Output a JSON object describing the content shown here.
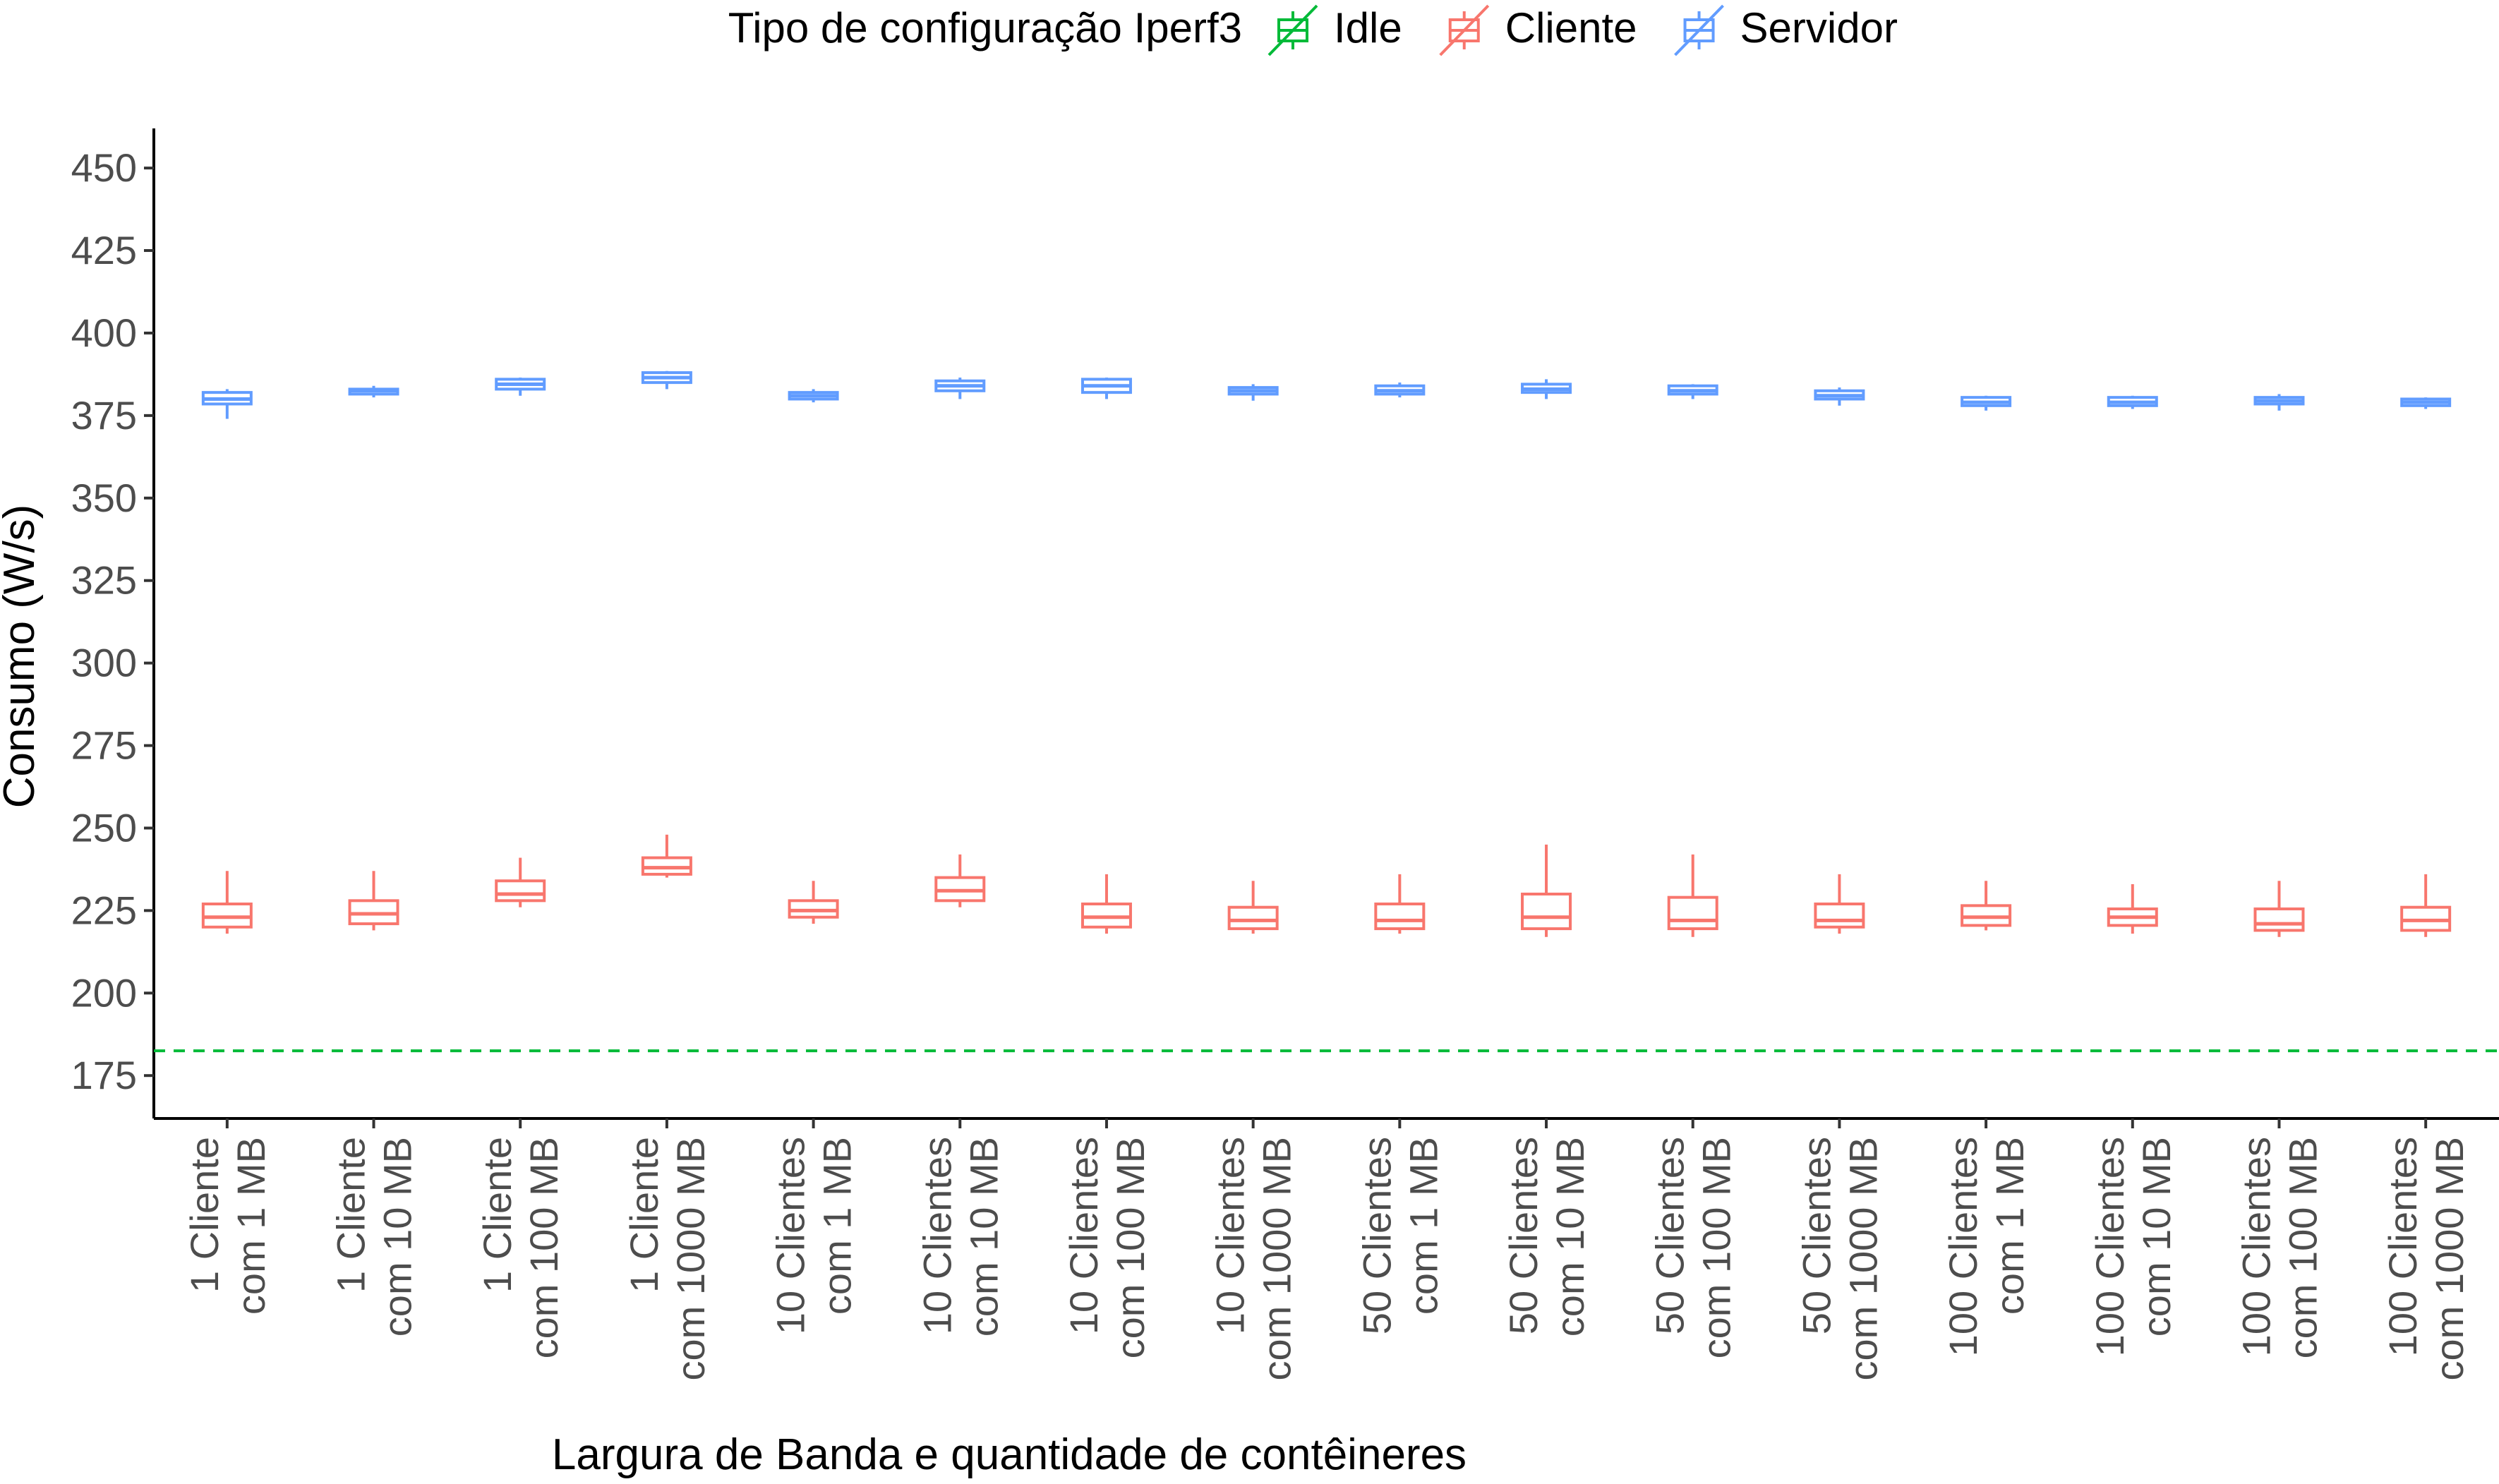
{
  "chart_data": {
    "type": "boxplot",
    "title": "",
    "xlabel": "Largura de Banda e quantidade de contêineres",
    "ylabel": "Consumo (W/s)",
    "ylim": [
      162,
      462
    ],
    "yticks": [
      175,
      200,
      225,
      250,
      275,
      300,
      325,
      350,
      375,
      400,
      425,
      450
    ],
    "grid": false,
    "legend": {
      "title": "Tipo de configuração Iperf3",
      "position": "top",
      "entries": [
        {
          "name": "Idle",
          "color": "#00BA38"
        },
        {
          "name": "Cliente",
          "color": "#F8766D"
        },
        {
          "name": "Servidor",
          "color": "#619CFF"
        }
      ]
    },
    "categories": [
      [
        "1 Cliente",
        "com 1 MB"
      ],
      [
        "1 Cliente",
        "com 10 MB"
      ],
      [
        "1 Cliente",
        "com 100 MB"
      ],
      [
        "1 Cliente",
        "com 1000 MB"
      ],
      [
        "10 Clientes",
        "com 1 MB"
      ],
      [
        "10 Clientes",
        "com 10 MB"
      ],
      [
        "10 Clientes",
        "com 100 MB"
      ],
      [
        "10 Clientes",
        "com 1000 MB"
      ],
      [
        "50 Clientes",
        "com 1 MB"
      ],
      [
        "50 Clientes",
        "com 10 MB"
      ],
      [
        "50 Clientes",
        "com 100 MB"
      ],
      [
        "50 Clientes",
        "com 1000 MB"
      ],
      [
        "100 Clientes",
        "com 1 MB"
      ],
      [
        "100 Clientes",
        "com 10 MB"
      ],
      [
        "100 Clientes",
        "com 100 MB"
      ],
      [
        "100 Clientes",
        "com 1000 MB"
      ]
    ],
    "series": [
      {
        "name": "Idle",
        "color": "#00BA38",
        "style": "dashed-hline",
        "value": 182.5
      },
      {
        "name": "Cliente",
        "color": "#F8766D",
        "boxes": [
          {
            "min": 218,
            "q1": 220,
            "median": 223,
            "q3": 227,
            "max": 237
          },
          {
            "min": 219,
            "q1": 221,
            "median": 224,
            "q3": 228,
            "max": 237
          },
          {
            "min": 226,
            "q1": 228,
            "median": 230,
            "q3": 234,
            "max": 241
          },
          {
            "min": 235,
            "q1": 236,
            "median": 238,
            "q3": 241,
            "max": 248
          },
          {
            "min": 221,
            "q1": 223,
            "median": 225,
            "q3": 228,
            "max": 234
          },
          {
            "min": 226,
            "q1": 228,
            "median": 231,
            "q3": 235,
            "max": 242
          },
          {
            "min": 218,
            "q1": 220,
            "median": 223,
            "q3": 227,
            "max": 236
          },
          {
            "min": 218,
            "q1": 219.5,
            "median": 222,
            "q3": 226,
            "max": 234
          },
          {
            "min": 218,
            "q1": 219.5,
            "median": 222,
            "q3": 227,
            "max": 236
          },
          {
            "min": 217,
            "q1": 219.5,
            "median": 223,
            "q3": 230,
            "max": 245
          },
          {
            "min": 217,
            "q1": 219.5,
            "median": 222,
            "q3": 229,
            "max": 242
          },
          {
            "min": 218,
            "q1": 220,
            "median": 222,
            "q3": 227,
            "max": 236
          },
          {
            "min": 219,
            "q1": 220.5,
            "median": 223,
            "q3": 226.5,
            "max": 234
          },
          {
            "min": 218,
            "q1": 220.5,
            "median": 223,
            "q3": 225.5,
            "max": 233
          },
          {
            "min": 217,
            "q1": 219,
            "median": 221,
            "q3": 225.5,
            "max": 234
          },
          {
            "min": 217,
            "q1": 219,
            "median": 222,
            "q3": 226,
            "max": 236
          }
        ]
      },
      {
        "name": "Servidor",
        "color": "#619CFF",
        "boxes": [
          {
            "min": 374,
            "q1": 378.5,
            "median": 380,
            "q3": 382,
            "max": 383
          },
          {
            "min": 380.5,
            "q1": 381.5,
            "median": 382.5,
            "q3": 383,
            "max": 384
          },
          {
            "min": 381,
            "q1": 383,
            "median": 384.5,
            "q3": 386,
            "max": 386.5
          },
          {
            "min": 383,
            "q1": 385,
            "median": 386.5,
            "q3": 388,
            "max": 388.5
          },
          {
            "min": 379,
            "q1": 380,
            "median": 381,
            "q3": 382,
            "max": 383
          },
          {
            "min": 380,
            "q1": 382.5,
            "median": 384,
            "q3": 385.5,
            "max": 386.5
          },
          {
            "min": 380,
            "q1": 382,
            "median": 384,
            "q3": 386,
            "max": 386.5
          },
          {
            "min": 379.5,
            "q1": 381.5,
            "median": 382.5,
            "q3": 383.5,
            "max": 384.5
          },
          {
            "min": 380.5,
            "q1": 381.5,
            "median": 382.5,
            "q3": 384,
            "max": 385
          },
          {
            "min": 380,
            "q1": 382,
            "median": 383,
            "q3": 384.5,
            "max": 386
          },
          {
            "min": 380,
            "q1": 381.5,
            "median": 382.5,
            "q3": 384,
            "max": 384.5
          },
          {
            "min": 378,
            "q1": 380,
            "median": 381,
            "q3": 382.5,
            "max": 383.5
          },
          {
            "min": 376.5,
            "q1": 378,
            "median": 379,
            "q3": 380.5,
            "max": 381
          },
          {
            "min": 377,
            "q1": 378,
            "median": 379,
            "q3": 380.5,
            "max": 381
          },
          {
            "min": 376.5,
            "q1": 378.5,
            "median": 379.5,
            "q3": 380.5,
            "max": 381.5
          },
          {
            "min": 377,
            "q1": 378,
            "median": 379,
            "q3": 380,
            "max": 380.5
          }
        ]
      }
    ]
  }
}
